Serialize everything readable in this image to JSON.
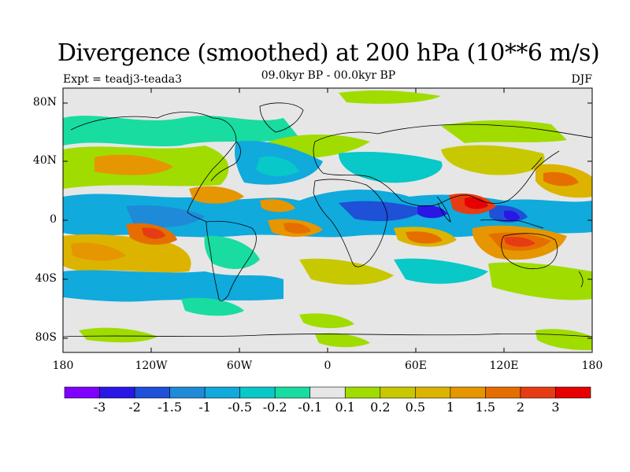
{
  "title": "Divergence (smoothed) at 200 hPa (10**6 m/s)",
  "subtitle": "09.0kyr BP - 00.0kyr BP",
  "left_note": "Expt = teadj3-teada3",
  "right_note": "DJF",
  "lat_ticks": [
    "80N",
    "40N",
    "0",
    "40S",
    "80S"
  ],
  "lon_ticks": [
    "180",
    "120W",
    "60W",
    "0",
    "60E",
    "120E",
    "180"
  ],
  "colorbar": {
    "colors": [
      "#7f00ff",
      "#2a17e6",
      "#1e50d8",
      "#1e8ad8",
      "#10aadc",
      "#08c8c8",
      "#19dca0",
      "#e6e6e6",
      "#a0dc00",
      "#c8c800",
      "#dcb400",
      "#e69600",
      "#e66e00",
      "#e63c14",
      "#e60000"
    ],
    "labels": [
      "-3",
      "-2",
      "-1.5",
      "-1",
      "-0.5",
      "-0.2",
      "-0.1",
      "0.1",
      "0.2",
      "0.5",
      "1",
      "1.5",
      "2",
      "3"
    ]
  }
}
